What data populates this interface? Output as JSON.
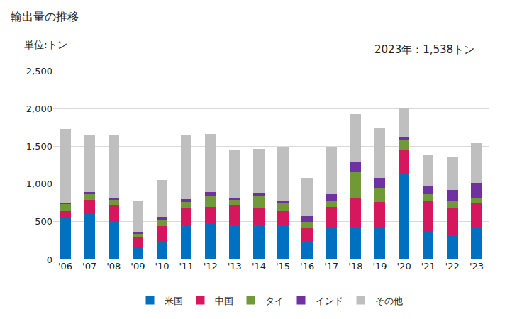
{
  "chart_data": {
    "type": "bar",
    "title": "輸出量の推移",
    "y_label": "単位:トン",
    "annotations": [
      "2023年：1,538トン"
    ],
    "stacked": true,
    "grid": true,
    "legend": "bottom",
    "categories": [
      "'06",
      "'07",
      "'08",
      "'09",
      "'10",
      "'11",
      "'12",
      "'13",
      "'14",
      "'15",
      "'16",
      "'17",
      "'18",
      "'19",
      "'20",
      "'21",
      "'22",
      "'23"
    ],
    "series": [
      {
        "name": "米国",
        "color": "#0070c0",
        "values": [
          555,
          605,
          505,
          150,
          225,
          460,
          490,
          460,
          450,
          460,
          245,
          410,
          430,
          425,
          1140,
          380,
          320,
          430
        ]
      },
      {
        "name": "中国",
        "color": "#d6175e",
        "values": [
          95,
          185,
          215,
          145,
          220,
          220,
          205,
          265,
          235,
          175,
          175,
          285,
          375,
          335,
          310,
          400,
          365,
          320
        ]
      },
      {
        "name": "タイ",
        "color": "#6f9a37",
        "values": [
          85,
          80,
          70,
          45,
          80,
          80,
          140,
          65,
          165,
          115,
          75,
          80,
          355,
          185,
          125,
          95,
          85,
          70
        ]
      },
      {
        "name": "インド",
        "color": "#7030a0",
        "values": [
          15,
          20,
          25,
          25,
          35,
          40,
          55,
          25,
          35,
          30,
          75,
          95,
          130,
          140,
          55,
          100,
          155,
          195
        ]
      },
      {
        "name": "その他",
        "color": "#bfbfbf",
        "values": [
          980,
          765,
          830,
          415,
          495,
          845,
          775,
          630,
          585,
          710,
          515,
          620,
          635,
          655,
          370,
          405,
          435,
          523
        ]
      }
    ],
    "ylim": [
      0,
      2500
    ],
    "yticks": [
      0,
      500,
      {
        "value": 1000,
        "label": "1,000"
      },
      {
        "value": 1500,
        "label": "1,500"
      },
      {
        "value": 2000,
        "label": "2,000"
      },
      {
        "value": 2500,
        "label": "2,500"
      }
    ]
  }
}
